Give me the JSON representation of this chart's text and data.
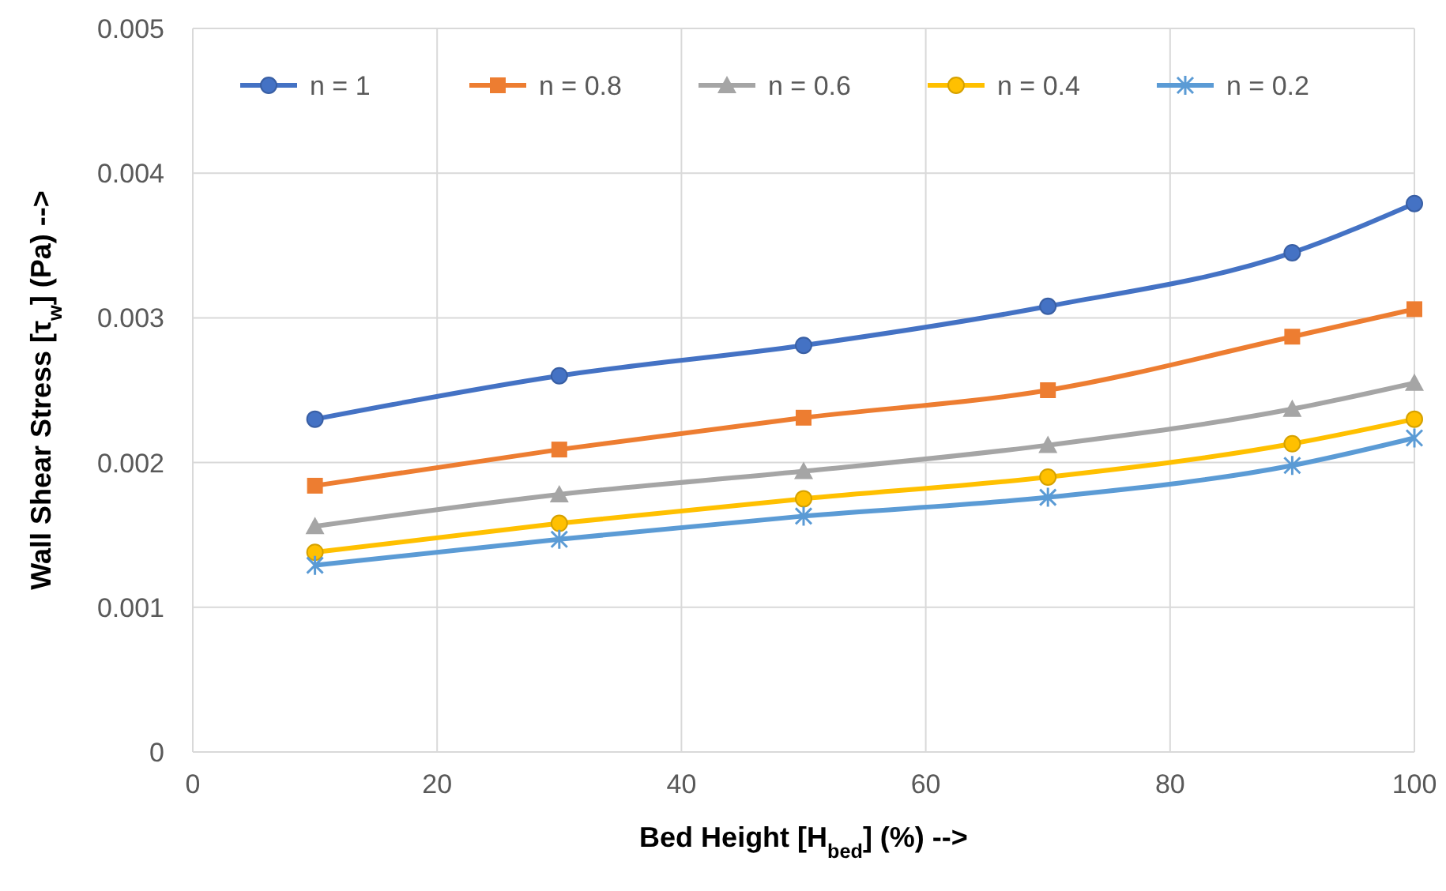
{
  "chart_data": {
    "type": "line",
    "xlabel": "Bed Height [H$_{bed}$] (%) -->",
    "ylabel": "Wall Shear Stress [τ$_{w}$] (Pa) -->",
    "x": [
      10,
      30,
      50,
      70,
      90,
      100
    ],
    "xlim": [
      0,
      100
    ],
    "xticks": [
      0,
      20,
      40,
      60,
      80,
      100
    ],
    "ylim": [
      0,
      0.005
    ],
    "yticks": [
      0,
      0.001,
      0.002,
      0.003,
      0.004,
      0.005
    ],
    "grid": true,
    "legend": "top",
    "series": [
      {
        "name": "n = 1",
        "color": "#4472c4",
        "marker": "circle",
        "values": [
          0.0023,
          0.0026,
          0.00281,
          0.00308,
          0.00345,
          0.00379
        ]
      },
      {
        "name": "n = 0.8",
        "color": "#ed7d31",
        "marker": "square",
        "values": [
          0.00184,
          0.00209,
          0.00231,
          0.0025,
          0.00287,
          0.00306
        ]
      },
      {
        "name": "n = 0.6",
        "color": "#a5a5a5",
        "marker": "triangle",
        "values": [
          0.00156,
          0.00178,
          0.00194,
          0.00212,
          0.00237,
          0.00255
        ]
      },
      {
        "name": "n = 0.4",
        "color": "#ffc000",
        "marker": "circle",
        "values": [
          0.00138,
          0.00158,
          0.00175,
          0.0019,
          0.00213,
          0.0023
        ]
      },
      {
        "name": "n = 0.2",
        "color": "#5b9bd5",
        "marker": "cross",
        "values": [
          0.00129,
          0.00147,
          0.00163,
          0.00176,
          0.00198,
          0.00217
        ]
      }
    ]
  }
}
